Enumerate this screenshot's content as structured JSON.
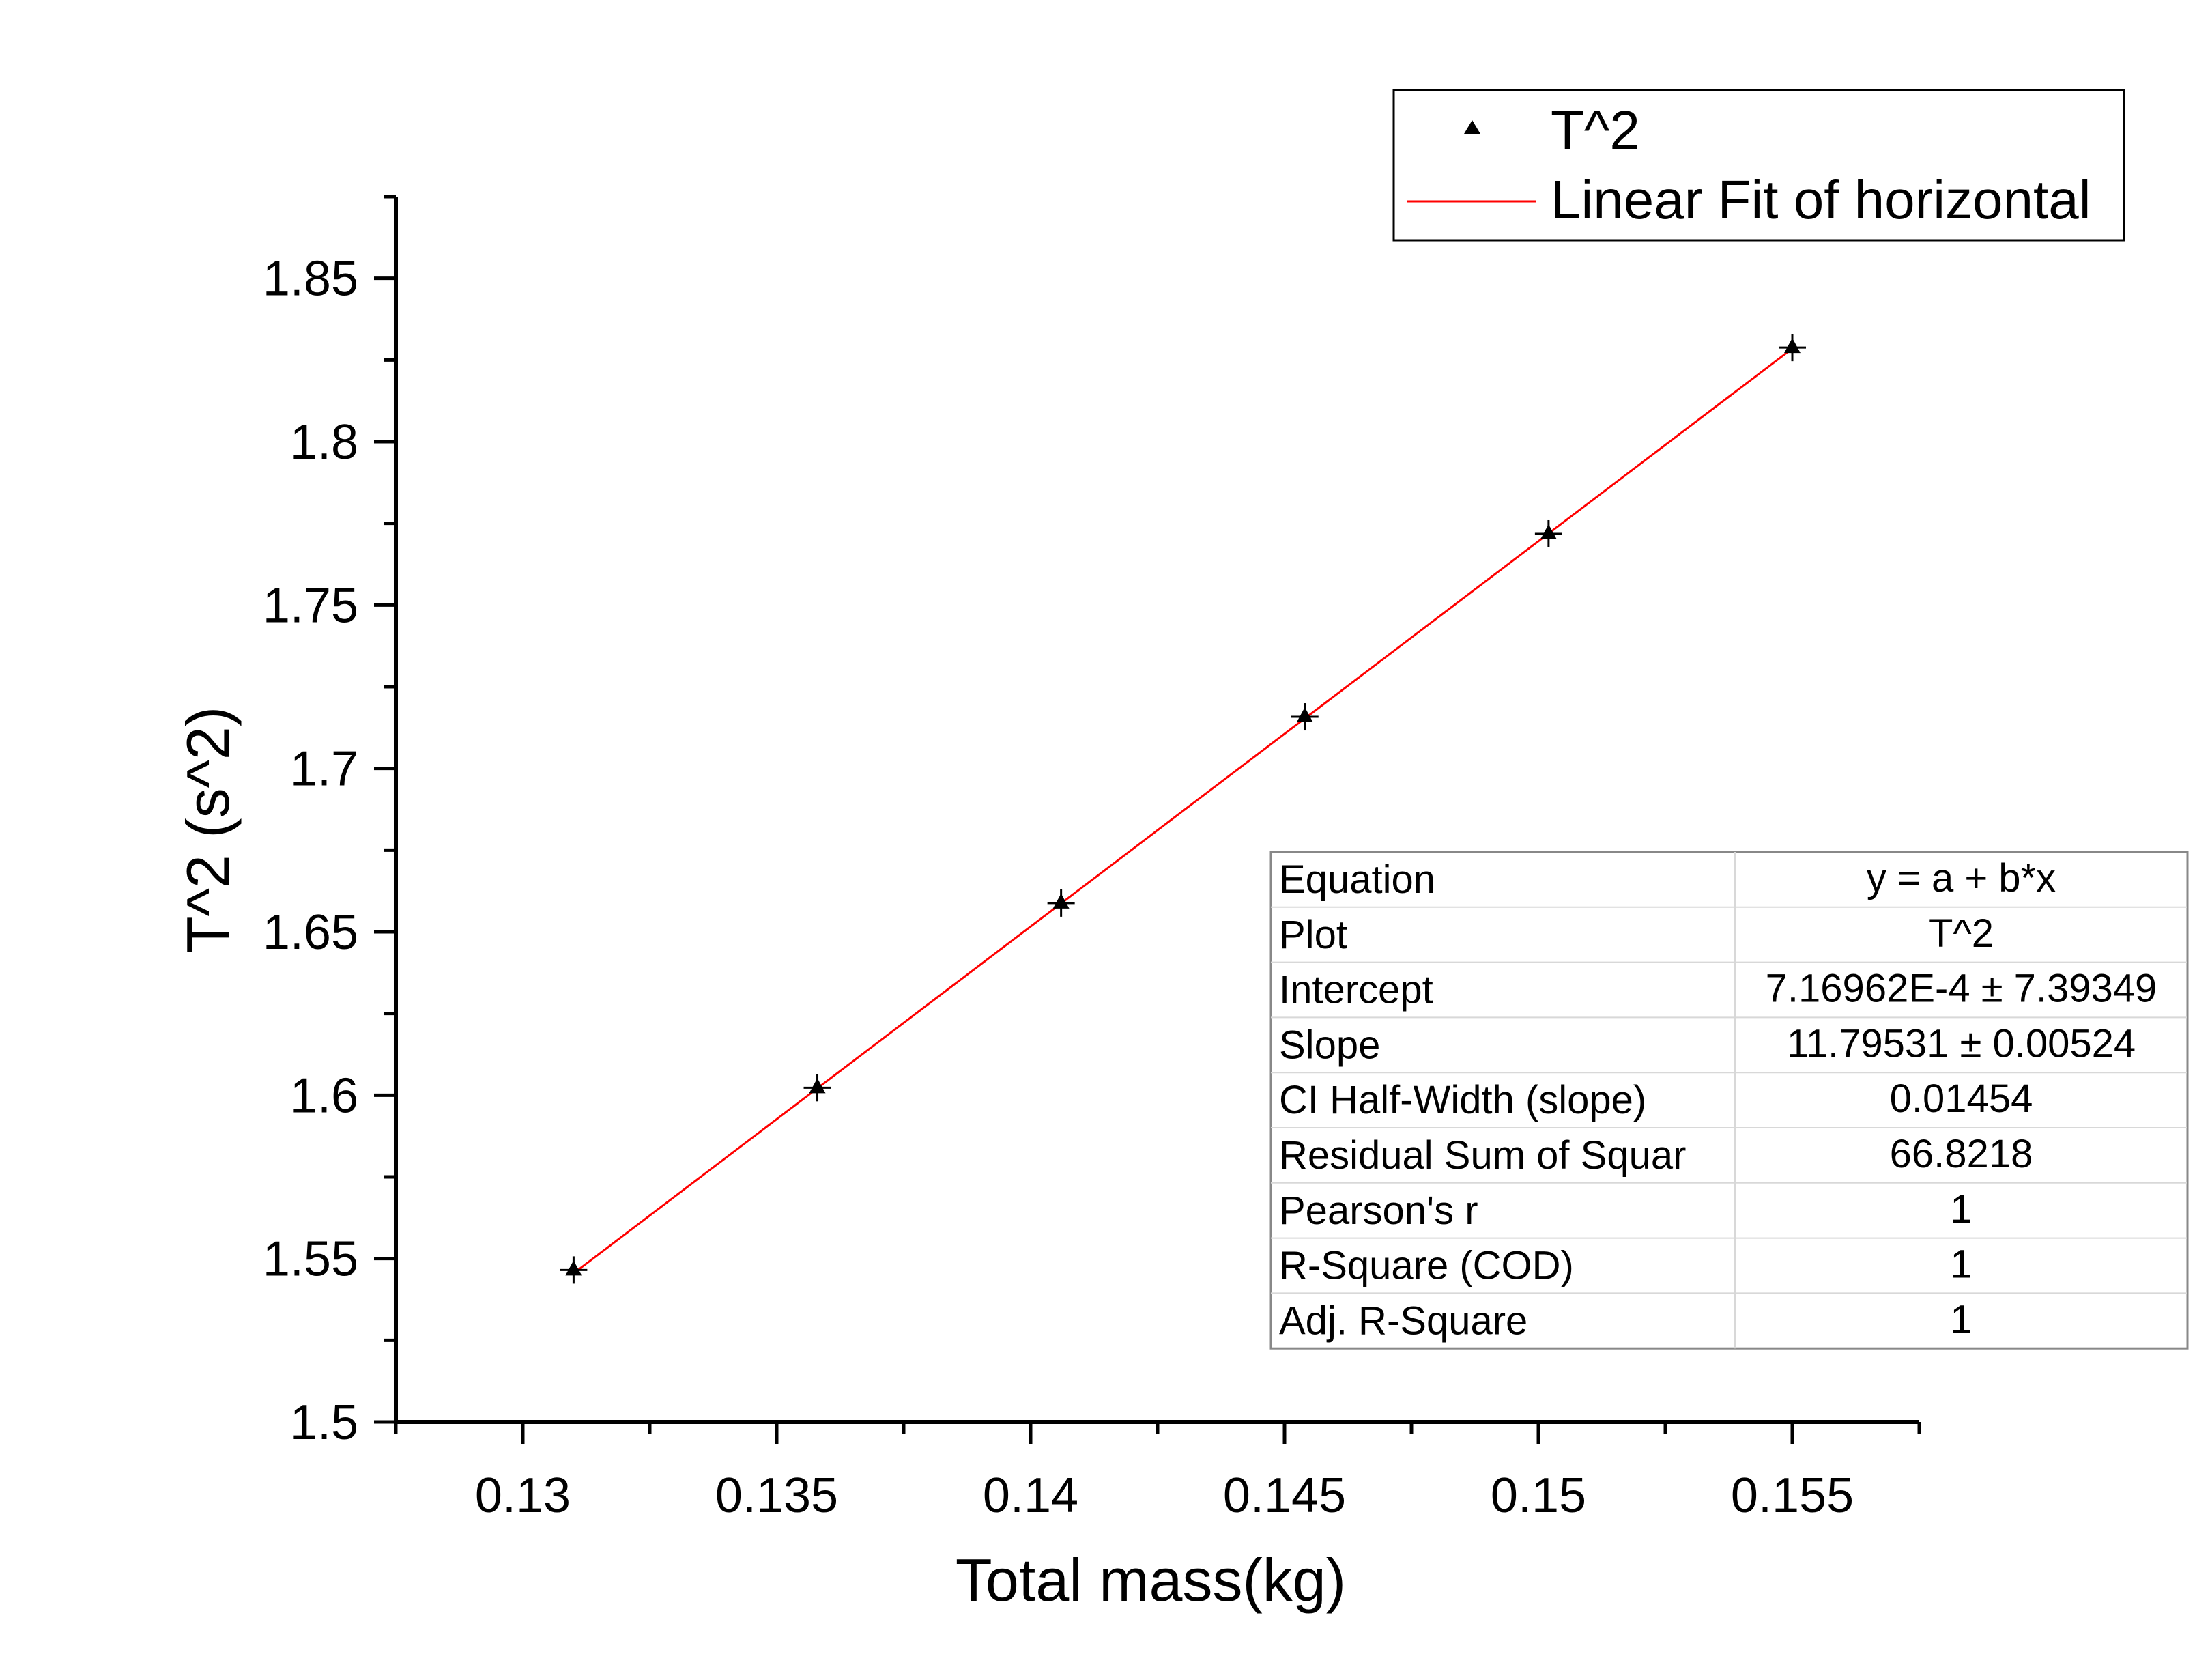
{
  "chart_data": {
    "type": "scatter",
    "xlabel": "Total mass(kg)",
    "ylabel": "T^2 (s^2)",
    "xlim": [
      0.1275,
      0.1575
    ],
    "ylim": [
      1.5,
      1.875
    ],
    "x_ticks": [
      0.13,
      0.135,
      0.14,
      0.145,
      0.15,
      0.155
    ],
    "x_tick_labels": [
      "0.13",
      "0.135",
      "0.14",
      "0.145",
      "0.15",
      "0.155"
    ],
    "y_ticks": [
      1.5,
      1.55,
      1.6,
      1.65,
      1.7,
      1.75,
      1.8,
      1.85
    ],
    "y_tick_labels": [
      "1.5",
      "1.55",
      "1.6",
      "1.65",
      "1.7",
      "1.75",
      "1.8",
      "1.85"
    ],
    "grid": false,
    "legend_position": "top-right",
    "series": [
      {
        "name": "T^2",
        "kind": "scatter",
        "marker": "triangle",
        "color": "#000000",
        "x": [
          0.131,
          0.1358,
          0.1406,
          0.1454,
          0.1502,
          0.155
        ],
        "y": [
          1.5465,
          1.6023,
          1.6588,
          1.7158,
          1.7718,
          1.8288
        ]
      },
      {
        "name": "Linear Fit of horizontal",
        "kind": "line",
        "color": "#ff0000",
        "x": [
          0.131,
          0.155
        ],
        "y": [
          1.5455,
          1.8285
        ]
      }
    ],
    "fit_table": [
      {
        "label": "Equation",
        "value": "y = a + b*x"
      },
      {
        "label": "Plot",
        "value": "T^2"
      },
      {
        "label": "Intercept",
        "value": "7.16962E-4 ± 7.39349"
      },
      {
        "label": "Slope",
        "value": "11.79531 ± 0.00524"
      },
      {
        "label": "CI Half-Width (slope)",
        "value": "0.01454"
      },
      {
        "label": "Residual Sum of Squar",
        "value": "66.8218"
      },
      {
        "label": "Pearson's r",
        "value": "1"
      },
      {
        "label": "R-Square (COD)",
        "value": "1"
      },
      {
        "label": "Adj. R-Square",
        "value": "1"
      }
    ]
  }
}
